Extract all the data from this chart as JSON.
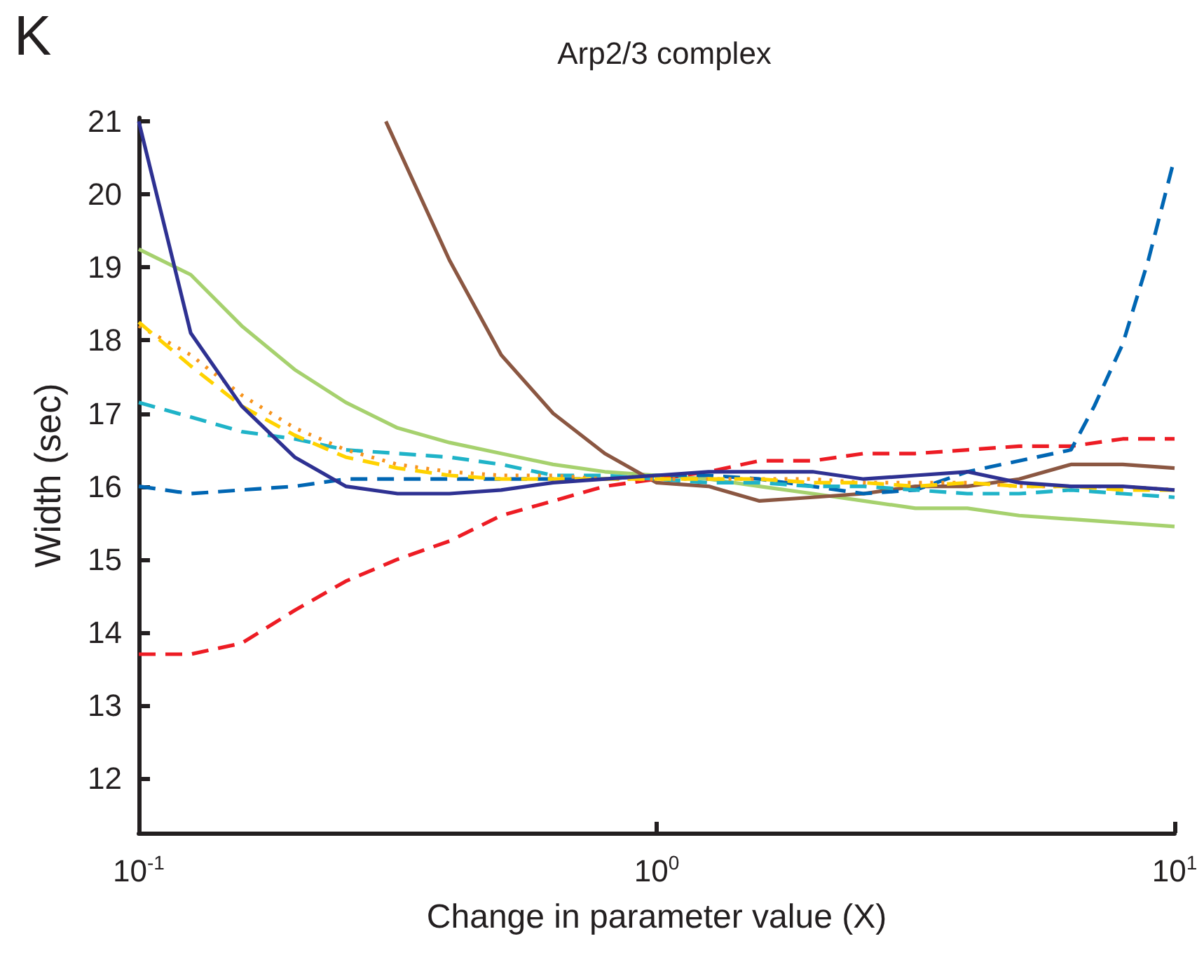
{
  "chart_data": {
    "type": "line",
    "title": "Arp2/3 complex",
    "xlabel": "Change in parameter value (X)",
    "ylabel": "Width (sec)",
    "annotations": [
      "K"
    ],
    "log": "x",
    "grid": false,
    "marker": "none",
    "xlim": [
      0.1,
      10
    ],
    "xticks": [
      {
        "value": 0.1,
        "label": "10$^{-1}$"
      },
      {
        "value": 1,
        "label": "10$^{0}$"
      },
      {
        "value": 10,
        "label": "10$^{1}$"
      }
    ],
    "ylim": [
      11.25,
      21.05
    ],
    "yticks": [
      12,
      13,
      14,
      15,
      16,
      17,
      18,
      19,
      20,
      21
    ],
    "x": [
      0.1,
      0.126,
      0.158,
      0.2,
      0.251,
      0.316,
      0.398,
      0.501,
      0.631,
      0.794,
      1,
      1.26,
      1.58,
      2,
      2.51,
      3.16,
      3.98,
      5.01,
      6.31,
      7.94,
      10
    ],
    "series": [
      {
        "color": "#a6d16e",
        "line_style": "solid",
        "values": [
          19.25,
          18.9,
          18.2,
          17.6,
          17.15,
          16.8,
          16.6,
          16.45,
          16.3,
          16.2,
          16.15,
          16.1,
          16.0,
          15.9,
          15.8,
          15.7,
          15.7,
          15.6,
          15.55,
          15.5,
          15.45
        ]
      },
      {
        "color": "#8b5742",
        "line_style": "solid",
        "x": [
          0.3,
          0.398,
          0.501,
          0.631,
          0.794,
          1,
          1.26,
          1.58,
          2,
          2.51,
          3.16,
          3.98,
          5.01,
          6.31,
          7.94,
          10
        ],
        "values": [
          21.0,
          19.1,
          17.8,
          17.0,
          16.45,
          16.05,
          16.0,
          15.8,
          15.85,
          15.9,
          16.0,
          16.0,
          16.1,
          16.3,
          16.3,
          16.25
        ]
      },
      {
        "color": "#ed1c24",
        "line_style": "dashed",
        "values": [
          13.7,
          13.7,
          13.85,
          14.3,
          14.7,
          15.0,
          15.25,
          15.6,
          15.8,
          16.0,
          16.1,
          16.2,
          16.35,
          16.35,
          16.45,
          16.45,
          16.5,
          16.55,
          16.55,
          16.65,
          16.65
        ]
      },
      {
        "color": "#0066b3",
        "line_style": "dashed",
        "x": [
          0.1,
          0.126,
          0.158,
          0.2,
          0.251,
          0.316,
          0.398,
          0.501,
          0.631,
          0.794,
          1,
          1.26,
          1.58,
          2,
          2.51,
          3.16,
          3.98,
          5.01,
          6.31,
          7.0,
          7.94,
          8.9,
          10
        ],
        "values": [
          16.0,
          15.9,
          15.95,
          16.0,
          16.1,
          16.1,
          16.1,
          16.1,
          16.1,
          16.1,
          16.15,
          16.15,
          16.1,
          16.0,
          15.9,
          15.95,
          16.2,
          16.35,
          16.5,
          17.1,
          17.95,
          19.1,
          20.5
        ]
      },
      {
        "color": "#1fb3c8",
        "line_style": "dashed",
        "values": [
          17.15,
          16.95,
          16.75,
          16.65,
          16.5,
          16.45,
          16.4,
          16.3,
          16.15,
          16.15,
          16.1,
          16.05,
          16.05,
          16.0,
          16.0,
          15.95,
          15.9,
          15.9,
          15.95,
          15.9,
          15.85
        ]
      },
      {
        "color": "#f7941d",
        "line_style": "dotted",
        "values": [
          18.2,
          17.8,
          17.25,
          16.8,
          16.5,
          16.3,
          16.2,
          16.15,
          16.15,
          16.1,
          16.1,
          16.1,
          16.1,
          16.1,
          16.05,
          16.05,
          16.05,
          16.0,
          16.0,
          16.0,
          15.95
        ]
      },
      {
        "color": "#ffd200",
        "line_style": "dashed",
        "values": [
          18.25,
          17.65,
          17.1,
          16.7,
          16.4,
          16.25,
          16.15,
          16.1,
          16.1,
          16.1,
          16.1,
          16.1,
          16.1,
          16.05,
          16.05,
          16.0,
          16.05,
          16.0,
          16.0,
          15.95,
          15.95
        ]
      },
      {
        "color": "#2e3192",
        "line_style": "solid",
        "values": [
          21.0,
          18.1,
          17.1,
          16.4,
          16.0,
          15.9,
          15.9,
          15.95,
          16.05,
          16.1,
          16.15,
          16.2,
          16.2,
          16.2,
          16.1,
          16.15,
          16.2,
          16.05,
          16.0,
          16.0,
          15.95
        ]
      }
    ]
  }
}
